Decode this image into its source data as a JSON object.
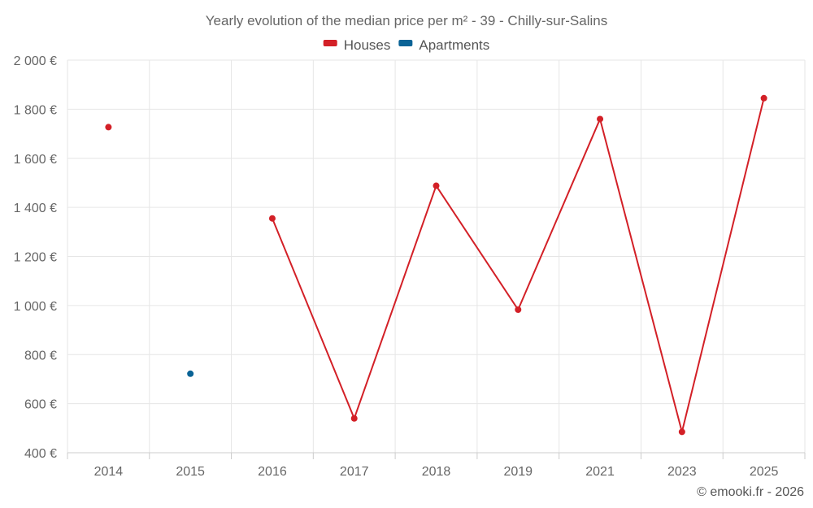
{
  "chart_data": {
    "type": "line",
    "title": "Yearly evolution of the median price per m² - 39 - Chilly-sur-Salins",
    "categories": [
      "2014",
      "2015",
      "2016",
      "2017",
      "2018",
      "2019",
      "2021",
      "2023",
      "2025"
    ],
    "series": [
      {
        "name": "Houses",
        "color": "#d32027",
        "values": [
          1727,
          null,
          1355,
          540,
          1488,
          983,
          1760,
          485,
          1845
        ],
        "connect": [
          false,
          false,
          true,
          true,
          true,
          true,
          true,
          true,
          true
        ]
      },
      {
        "name": "Apartments",
        "color": "#0a6396",
        "values": [
          null,
          722,
          null,
          null,
          null,
          null,
          null,
          null,
          null
        ],
        "connect": [
          false,
          false,
          false,
          false,
          false,
          false,
          false,
          false,
          false
        ]
      }
    ],
    "ylim": [
      400,
      2000
    ],
    "yticks": [
      400,
      600,
      800,
      1000,
      1200,
      1400,
      1600,
      1800,
      2000
    ],
    "ytick_labels": [
      "400 €",
      "600 €",
      "800 €",
      "1 000 €",
      "1 200 €",
      "1 400 €",
      "1 600 €",
      "1 800 €",
      "2 000 €"
    ],
    "xlabel": "",
    "ylabel": "",
    "grid": true,
    "legend_position": "top-center"
  },
  "credit": "© emooki.fr - 2026"
}
